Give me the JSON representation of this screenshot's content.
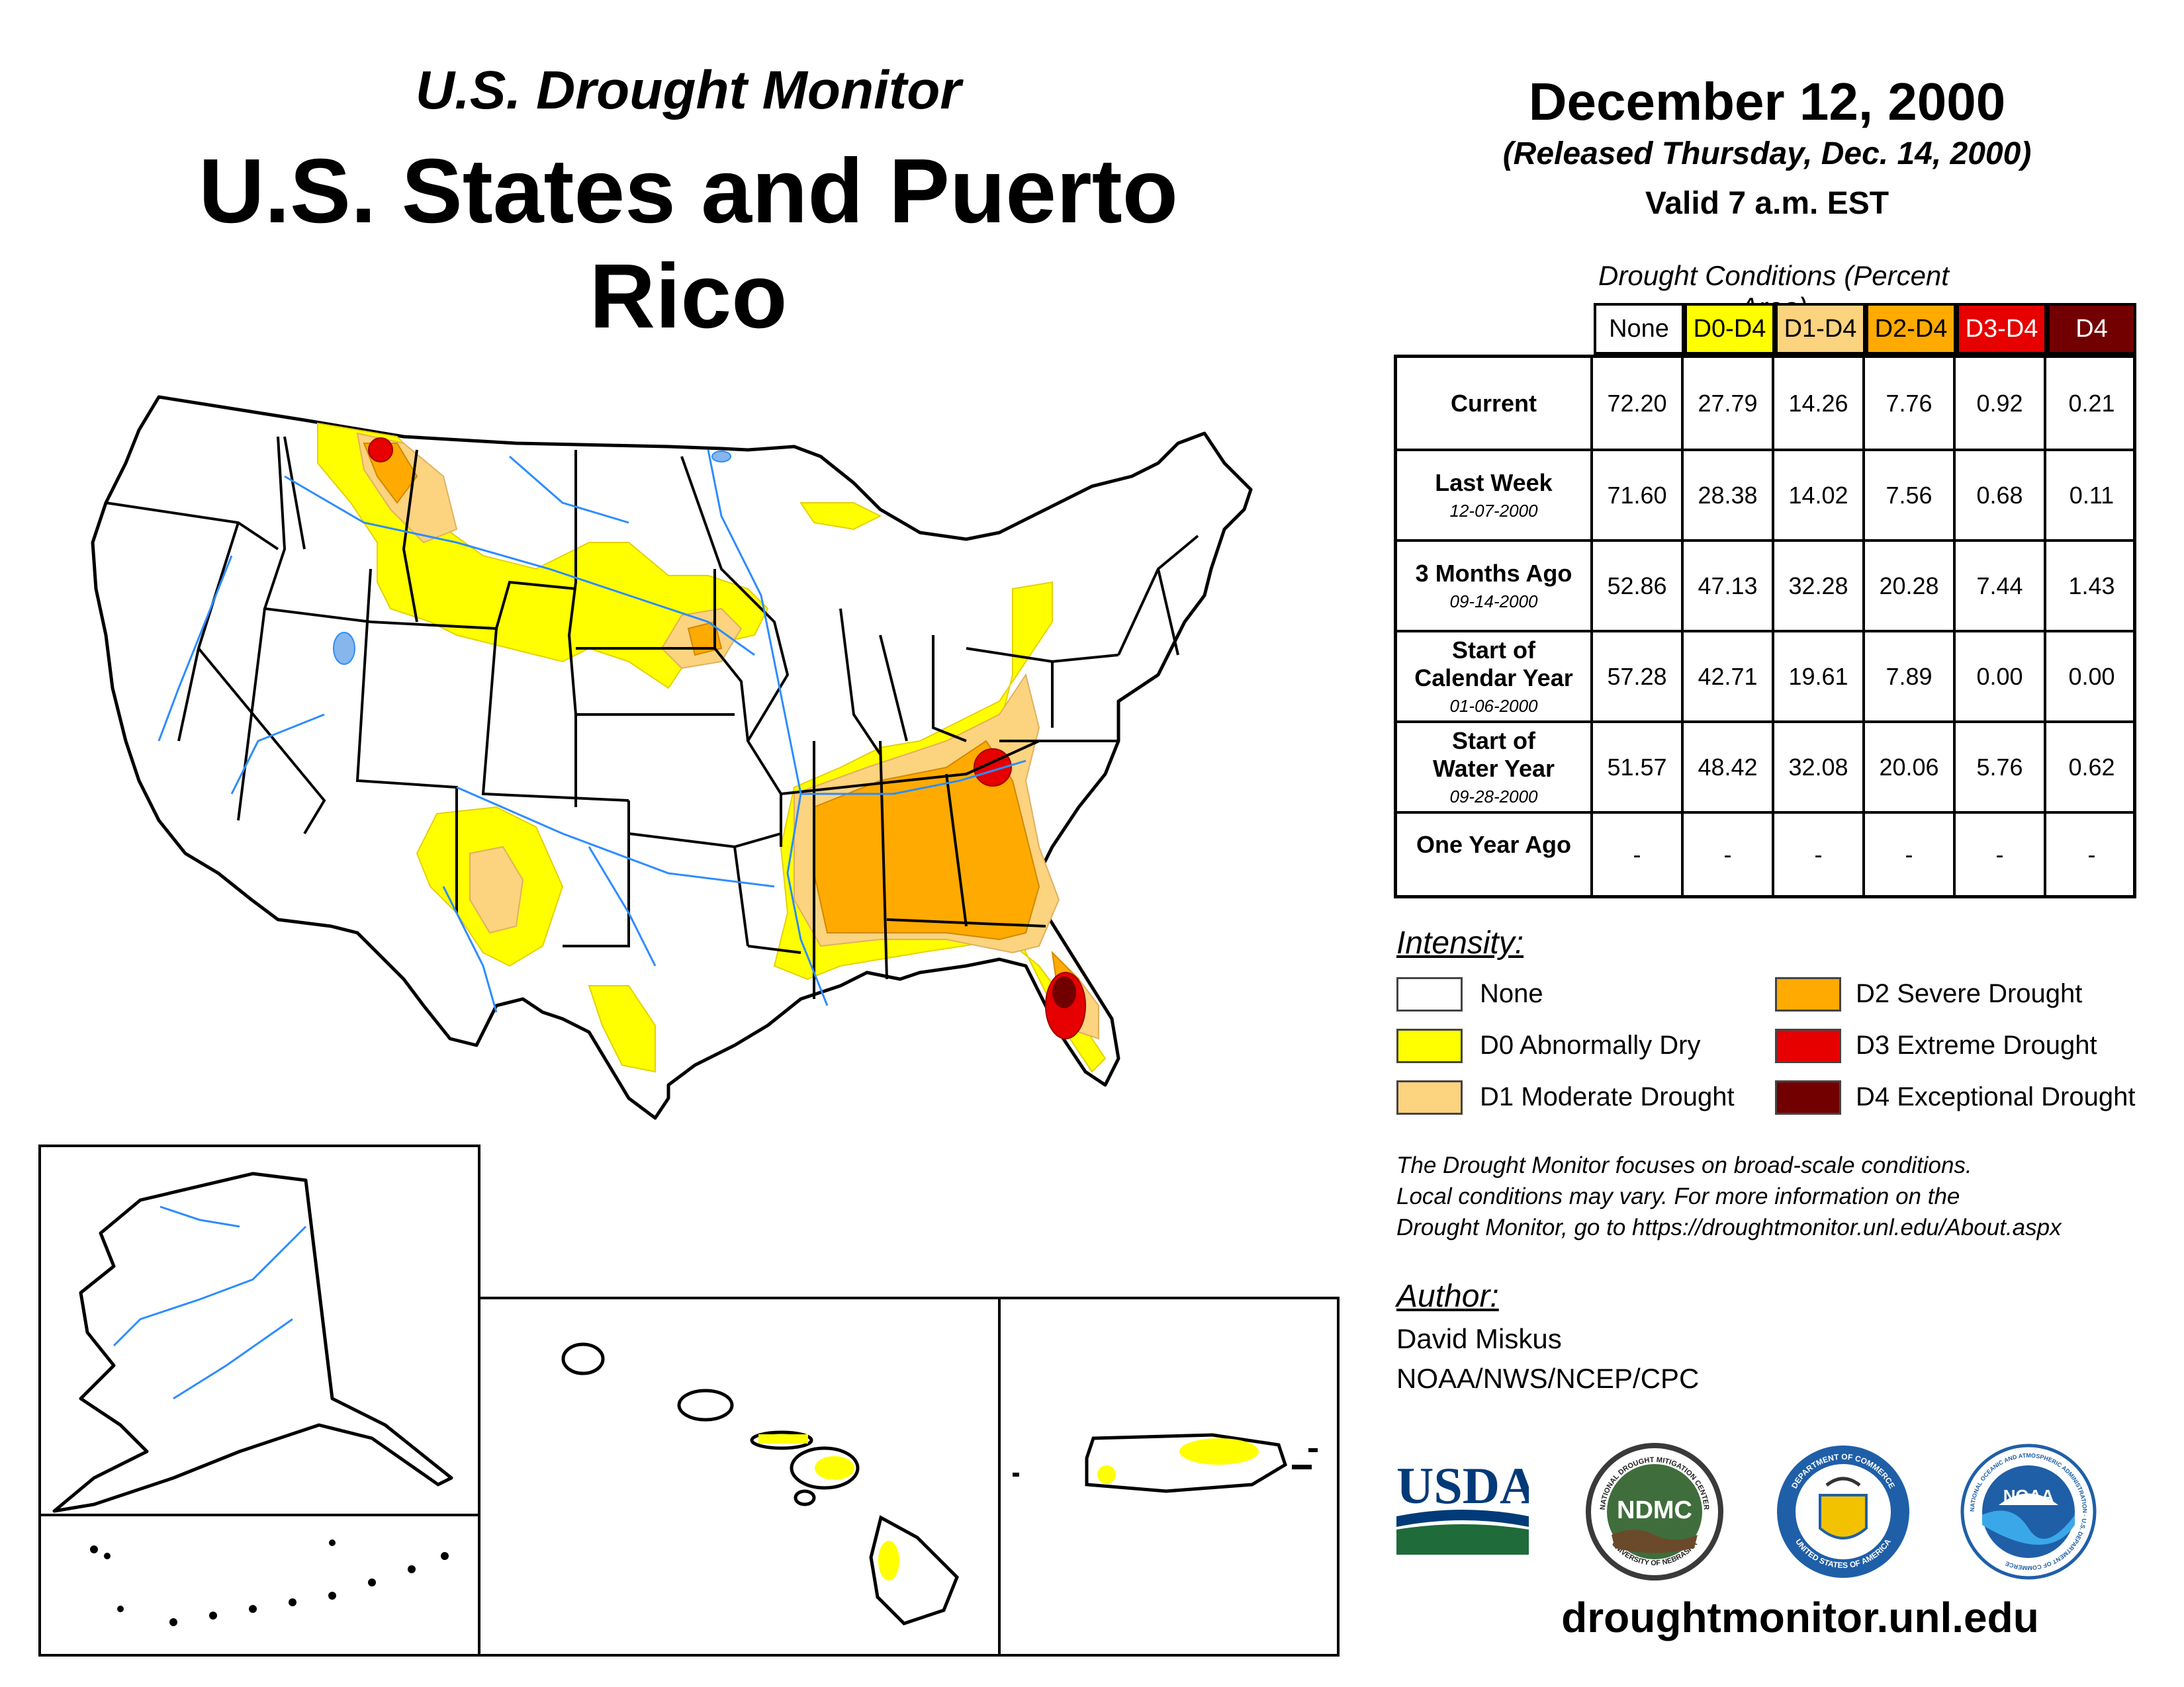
{
  "header": {
    "subtitle": "U.S. Drought Monitor",
    "title": "U.S. States and Puerto Rico",
    "date": "December 12, 2000",
    "released": "(Released Thursday, Dec. 14, 2000)",
    "valid": "Valid 7 a.m. EST"
  },
  "table": {
    "caption": "Drought Conditions (Percent Area)",
    "columns": [
      "None",
      "D0-D4",
      "D1-D4",
      "D2-D4",
      "D3-D4",
      "D4"
    ],
    "rows": [
      {
        "label": "Current",
        "date": "",
        "values": [
          "72.20",
          "27.79",
          "14.26",
          "7.76",
          "0.92",
          "0.21"
        ]
      },
      {
        "label": "Last Week",
        "date": "12-07-2000",
        "values": [
          "71.60",
          "28.38",
          "14.02",
          "7.56",
          "0.68",
          "0.11"
        ]
      },
      {
        "label": "3 Months Ago",
        "date": "09-14-2000",
        "values": [
          "52.86",
          "47.13",
          "32.28",
          "20.28",
          "7.44",
          "1.43"
        ]
      },
      {
        "label": "Start of Calendar Year",
        "date": "01-06-2000",
        "values": [
          "57.28",
          "42.71",
          "19.61",
          "7.89",
          "0.00",
          "0.00"
        ]
      },
      {
        "label": "Start of Water Year",
        "date": "09-28-2000",
        "values": [
          "51.57",
          "48.42",
          "32.08",
          "20.06",
          "5.76",
          "0.62"
        ]
      },
      {
        "label": "One Year Ago",
        "date": "",
        "values": [
          "-",
          "-",
          "-",
          "-",
          "-",
          "-"
        ]
      }
    ]
  },
  "legend": {
    "title": "Intensity:",
    "items": [
      {
        "label": "None",
        "color": "#ffffff"
      },
      {
        "label": "D0 Abnormally Dry",
        "color": "#ffff00"
      },
      {
        "label": "D1 Moderate Drought",
        "color": "#fcd37f"
      },
      {
        "label": "D2 Severe Drought",
        "color": "#ffaa00"
      },
      {
        "label": "D3 Extreme Drought",
        "color": "#e60000"
      },
      {
        "label": "D4 Exceptional Drought",
        "color": "#730000"
      }
    ]
  },
  "disclaimer": {
    "line1": "The Drought Monitor focuses on broad-scale conditions.",
    "line2": "Local conditions may vary. For more information on the",
    "line3": "Drought Monitor, go to https://droughtmonitor.unl.edu/About.aspx"
  },
  "author": {
    "title": "Author:",
    "name": "David Miskus",
    "org": "NOAA/NWS/NCEP/CPC"
  },
  "logos": {
    "usda": "USDA",
    "ndmc": "NDMC",
    "ndmc_ring_top": "NATIONAL DROUGHT MITIGATION CENTER",
    "ndmc_ring_bottom": "UNIVERSITY OF NEBRASKA",
    "commerce_ring_top": "DEPARTMENT OF COMMERCE",
    "commerce_ring_bottom": "UNITED STATES OF AMERICA",
    "noaa": "NOAA",
    "noaa_ring": "NATIONAL OCEANIC AND ATMOSPHERIC ADMINISTRATION · U.S. DEPARTMENT OF COMMERCE"
  },
  "website": "droughtmonitor.unl.edu",
  "colors": {
    "none": "#ffffff",
    "d0": "#ffff00",
    "d1": "#fcd37f",
    "d2": "#ffaa00",
    "d3": "#e60000",
    "d4": "#730000",
    "river": "#2d8cff",
    "lake": "#86b6ec"
  }
}
